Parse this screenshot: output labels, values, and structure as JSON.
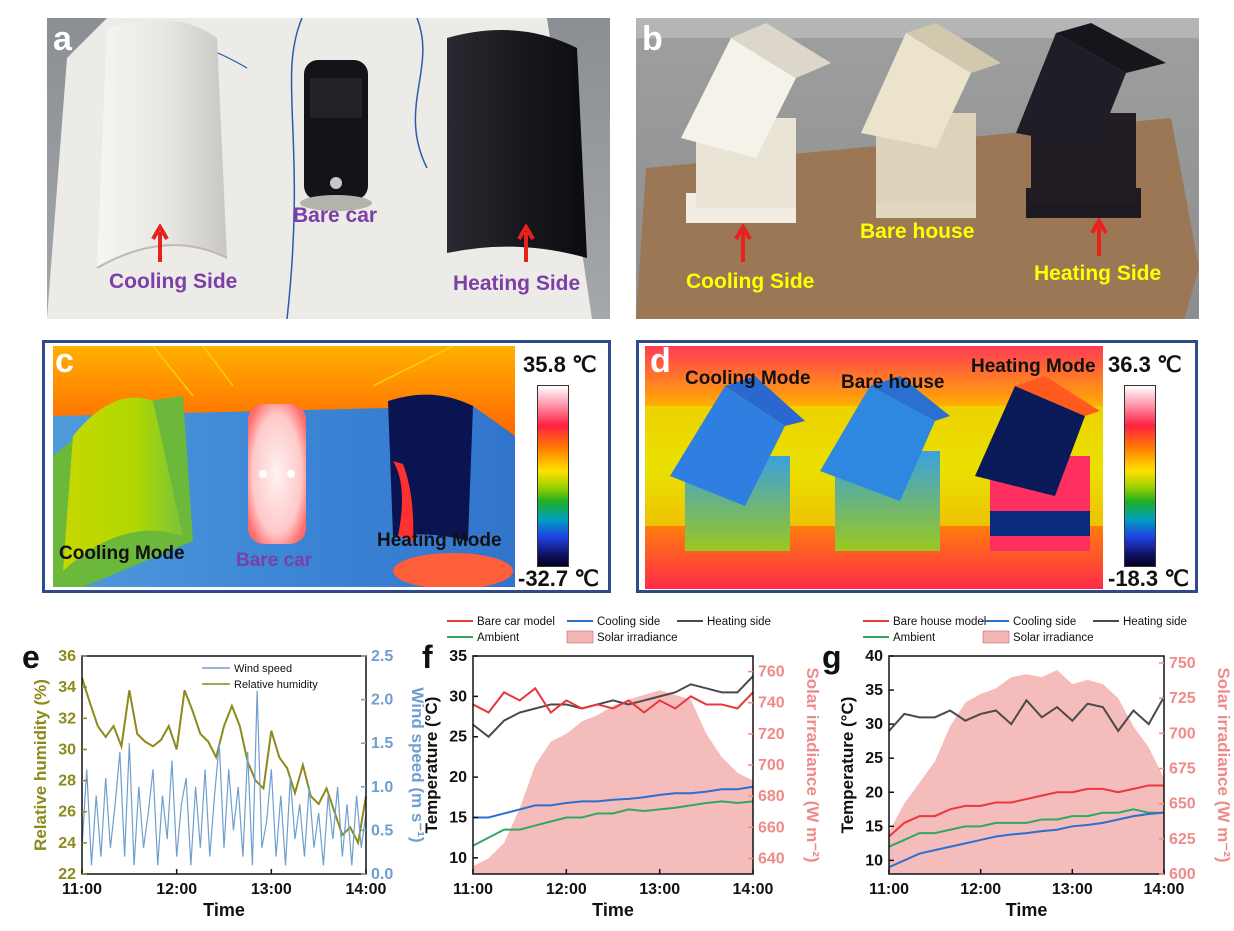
{
  "panels": {
    "a": {
      "letter": "a",
      "labels": {
        "bare": "Bare car",
        "cooling": "Cooling Side",
        "heating": "Heating Side"
      }
    },
    "b": {
      "letter": "b",
      "labels": {
        "bare": "Bare house",
        "cooling": "Cooling Side",
        "heating": "Heating Side"
      }
    },
    "c": {
      "letter": "c",
      "labels": {
        "bare": "Bare car",
        "cooling": "Cooling Mode",
        "heating": "Heating Mode"
      },
      "colorbar": {
        "max": "35.8 ℃",
        "min": "-32.7 ℃"
      }
    },
    "d": {
      "letter": "d",
      "labels": {
        "bare": "Bare house",
        "cooling": "Cooling Mode",
        "heating": "Heating Mode"
      },
      "colorbar": {
        "max": "36.3 ℃",
        "min": "-18.3 ℃"
      }
    }
  },
  "colors": {
    "photo_label_purple": "#7b3fa8",
    "photo_label_yellow": "#ffff00",
    "arrow_red": "#e8211d",
    "frame_blue": "#2f4a8a",
    "humidity": "#8c8a1a",
    "wind": "#6f9fce",
    "bare": "#e8383b",
    "cooling": "#2b6fd1",
    "heating": "#4a4a4a",
    "ambient": "#2fa860",
    "solar": "#f4b5b5",
    "solar_axis": "#f08a8a"
  },
  "chart_data": [
    {
      "panel": "e",
      "type": "line",
      "xlabel": "Time",
      "ylabel": "Relative humidity (%)",
      "y2label": "Wind speed (m s⁻¹)",
      "xticks": [
        "11:00",
        "12:00",
        "13:00",
        "14:00"
      ],
      "xlim": [
        0,
        180
      ],
      "ylim": [
        22,
        36
      ],
      "yticks": [
        22,
        24,
        26,
        28,
        30,
        32,
        34,
        36
      ],
      "y2lim": [
        0,
        2.5
      ],
      "y2ticks": [
        0.0,
        0.5,
        1.0,
        1.5,
        2.0,
        2.5
      ],
      "legend": [
        "Wind speed",
        "Relative humidity"
      ],
      "series": [
        {
          "name": "Relative humidity",
          "axis": "left",
          "x": [
            0,
            5,
            10,
            15,
            20,
            25,
            30,
            35,
            40,
            45,
            50,
            55,
            60,
            65,
            70,
            75,
            80,
            85,
            90,
            95,
            100,
            105,
            110,
            115,
            120,
            125,
            130,
            135,
            140,
            145,
            150,
            155,
            160,
            165,
            170,
            175,
            180
          ],
          "values": [
            34.6,
            33.0,
            31.5,
            30.8,
            31.5,
            30.2,
            33.8,
            31.0,
            30.5,
            30.2,
            30.6,
            31.5,
            30.0,
            33.8,
            32.5,
            31.0,
            30.5,
            29.5,
            31.5,
            32.8,
            31.5,
            29.2,
            28.0,
            27.5,
            31.2,
            29.5,
            28.8,
            27.2,
            29.0,
            27.0,
            26.5,
            27.5,
            26.0,
            24.5,
            25.0,
            24.0,
            27.0
          ]
        },
        {
          "name": "Wind speed",
          "axis": "right",
          "x": [
            0,
            3,
            6,
            9,
            12,
            15,
            18,
            21,
            24,
            27,
            30,
            33,
            36,
            39,
            42,
            45,
            48,
            51,
            54,
            57,
            60,
            63,
            66,
            69,
            72,
            75,
            78,
            81,
            84,
            87,
            90,
            93,
            96,
            99,
            102,
            105,
            108,
            111,
            114,
            117,
            120,
            123,
            126,
            129,
            132,
            135,
            138,
            141,
            144,
            147,
            150,
            153,
            156,
            159,
            162,
            165,
            168,
            171,
            174,
            177,
            180
          ],
          "values": [
            0.3,
            1.2,
            0.1,
            0.9,
            0.2,
            1.1,
            0.3,
            0.8,
            1.4,
            0.2,
            1.5,
            0.1,
            1.0,
            0.3,
            0.7,
            1.2,
            0.1,
            0.9,
            0.4,
            1.3,
            0.2,
            0.8,
            1.1,
            0.1,
            1.0,
            0.3,
            1.2,
            0.2,
            0.9,
            1.5,
            0.3,
            1.2,
            0.5,
            1.0,
            0.2,
            1.4,
            0.1,
            2.1,
            0.3,
            0.6,
            1.2,
            0.2,
            0.9,
            0.1,
            1.1,
            0.4,
            0.8,
            0.2,
            1.0,
            0.3,
            0.7,
            0.1,
            0.9,
            0.4,
            1.0,
            0.2,
            0.8,
            0.1,
            0.9,
            0.3,
            0.7
          ]
        }
      ]
    },
    {
      "panel": "f",
      "type": "line",
      "xlabel": "Time",
      "ylabel": "Temperature (°C)",
      "y2label": "Solar irradiance (W m⁻²)",
      "xticks": [
        "11:00",
        "12:00",
        "13:00",
        "14:00"
      ],
      "xlim": [
        0,
        180
      ],
      "ylim": [
        8,
        35
      ],
      "yticks": [
        10,
        15,
        20,
        25,
        30,
        35
      ],
      "y2lim": [
        630,
        770
      ],
      "y2ticks": [
        640,
        660,
        680,
        700,
        720,
        740,
        760
      ],
      "legend": [
        "Bare car model",
        "Cooling side",
        "Heating side",
        "Ambient",
        "Solar irradiance"
      ],
      "series": [
        {
          "name": "Solar irradiance",
          "axis": "right",
          "kind": "area",
          "x": [
            0,
            10,
            20,
            30,
            40,
            50,
            60,
            70,
            80,
            90,
            100,
            110,
            120,
            130,
            140,
            150,
            160,
            170,
            180
          ],
          "values": [
            635,
            640,
            650,
            672,
            700,
            715,
            720,
            728,
            732,
            738,
            742,
            745,
            748,
            745,
            742,
            720,
            705,
            695,
            690
          ]
        },
        {
          "name": "Heating side",
          "axis": "left",
          "x": [
            0,
            10,
            20,
            30,
            40,
            50,
            60,
            70,
            80,
            90,
            100,
            110,
            120,
            130,
            140,
            150,
            160,
            170,
            180
          ],
          "values": [
            26.5,
            25.0,
            27.0,
            28.0,
            28.5,
            29.0,
            29.0,
            28.5,
            29.0,
            29.5,
            29.0,
            29.5,
            30.0,
            30.5,
            31.5,
            31.0,
            30.5,
            30.5,
            32.5
          ]
        },
        {
          "name": "Bare car model",
          "axis": "left",
          "x": [
            0,
            10,
            20,
            30,
            40,
            50,
            60,
            70,
            80,
            90,
            100,
            110,
            120,
            130,
            140,
            150,
            160,
            170,
            180
          ],
          "values": [
            29.0,
            28.0,
            30.5,
            29.5,
            31.0,
            28.0,
            29.5,
            28.5,
            29.0,
            28.5,
            29.5,
            28.0,
            29.5,
            28.5,
            30.0,
            29.0,
            29.0,
            28.5,
            30.5
          ]
        },
        {
          "name": "Cooling side",
          "axis": "left",
          "x": [
            0,
            10,
            20,
            30,
            40,
            50,
            60,
            70,
            80,
            90,
            100,
            110,
            120,
            130,
            140,
            150,
            160,
            170,
            180
          ],
          "values": [
            15.0,
            15.0,
            15.5,
            16.0,
            16.5,
            16.5,
            16.8,
            17.0,
            17.0,
            17.2,
            17.3,
            17.5,
            17.8,
            18.0,
            18.0,
            18.2,
            18.5,
            18.5,
            18.8
          ]
        },
        {
          "name": "Ambient",
          "axis": "left",
          "x": [
            0,
            10,
            20,
            30,
            40,
            50,
            60,
            70,
            80,
            90,
            100,
            110,
            120,
            130,
            140,
            150,
            160,
            170,
            180
          ],
          "values": [
            11.5,
            12.5,
            13.5,
            13.5,
            14.0,
            14.5,
            15.0,
            15.0,
            15.5,
            15.5,
            16.0,
            15.8,
            16.0,
            16.2,
            16.5,
            16.8,
            17.0,
            16.8,
            17.0
          ]
        }
      ]
    },
    {
      "panel": "g",
      "type": "line",
      "xlabel": "Time",
      "ylabel": "Temperature (°C)",
      "y2label": "Solar irradiance (W m⁻²)",
      "xticks": [
        "11:00",
        "12:00",
        "13:00",
        "14:00"
      ],
      "xlim": [
        0,
        180
      ],
      "ylim": [
        8,
        40
      ],
      "yticks": [
        10,
        15,
        20,
        25,
        30,
        35,
        40
      ],
      "y2lim": [
        600,
        755
      ],
      "y2ticks": [
        600,
        625,
        650,
        675,
        700,
        725,
        750
      ],
      "legend": [
        "Bare house model",
        "Cooling side",
        "Heating side",
        "Ambient",
        "Solar irradiance"
      ],
      "series": [
        {
          "name": "Solar irradiance",
          "axis": "right",
          "kind": "area",
          "x": [
            0,
            10,
            20,
            30,
            40,
            50,
            60,
            70,
            80,
            90,
            100,
            110,
            120,
            130,
            140,
            150,
            160,
            170,
            180
          ],
          "values": [
            630,
            650,
            665,
            680,
            705,
            722,
            728,
            732,
            740,
            742,
            740,
            745,
            735,
            738,
            735,
            725,
            705,
            690,
            668
          ]
        },
        {
          "name": "Heating side",
          "axis": "left",
          "x": [
            0,
            10,
            20,
            30,
            40,
            50,
            60,
            70,
            80,
            90,
            100,
            110,
            120,
            130,
            140,
            150,
            160,
            170,
            180
          ],
          "values": [
            29.0,
            31.5,
            31.0,
            31.0,
            32.0,
            30.5,
            31.5,
            32.0,
            30.0,
            33.5,
            31.0,
            32.5,
            30.5,
            33.0,
            32.5,
            29.0,
            32.0,
            30.0,
            34.0
          ]
        },
        {
          "name": "Bare house model",
          "axis": "left",
          "x": [
            0,
            10,
            20,
            30,
            40,
            50,
            60,
            70,
            80,
            90,
            100,
            110,
            120,
            130,
            140,
            150,
            160,
            170,
            180
          ],
          "values": [
            13.5,
            15.5,
            16.5,
            16.5,
            17.5,
            18.0,
            18.0,
            18.5,
            18.5,
            19.0,
            19.5,
            20.0,
            20.0,
            20.5,
            20.5,
            20.0,
            20.5,
            21.0,
            21.0
          ]
        },
        {
          "name": "Ambient",
          "axis": "left",
          "x": [
            0,
            10,
            20,
            30,
            40,
            50,
            60,
            70,
            80,
            90,
            100,
            110,
            120,
            130,
            140,
            150,
            160,
            170,
            180
          ],
          "values": [
            12.0,
            13.0,
            14.0,
            14.0,
            14.5,
            15.0,
            15.0,
            15.5,
            15.5,
            15.5,
            16.0,
            16.0,
            16.5,
            16.5,
            17.0,
            17.0,
            17.5,
            17.0,
            17.0
          ]
        },
        {
          "name": "Cooling side",
          "axis": "left",
          "x": [
            0,
            10,
            20,
            30,
            40,
            50,
            60,
            70,
            80,
            90,
            100,
            110,
            120,
            130,
            140,
            150,
            160,
            170,
            180
          ],
          "values": [
            9.0,
            10.0,
            11.0,
            11.5,
            12.0,
            12.5,
            13.0,
            13.5,
            13.8,
            14.0,
            14.3,
            14.5,
            15.0,
            15.2,
            15.5,
            16.0,
            16.5,
            16.8,
            17.0
          ]
        }
      ]
    }
  ]
}
